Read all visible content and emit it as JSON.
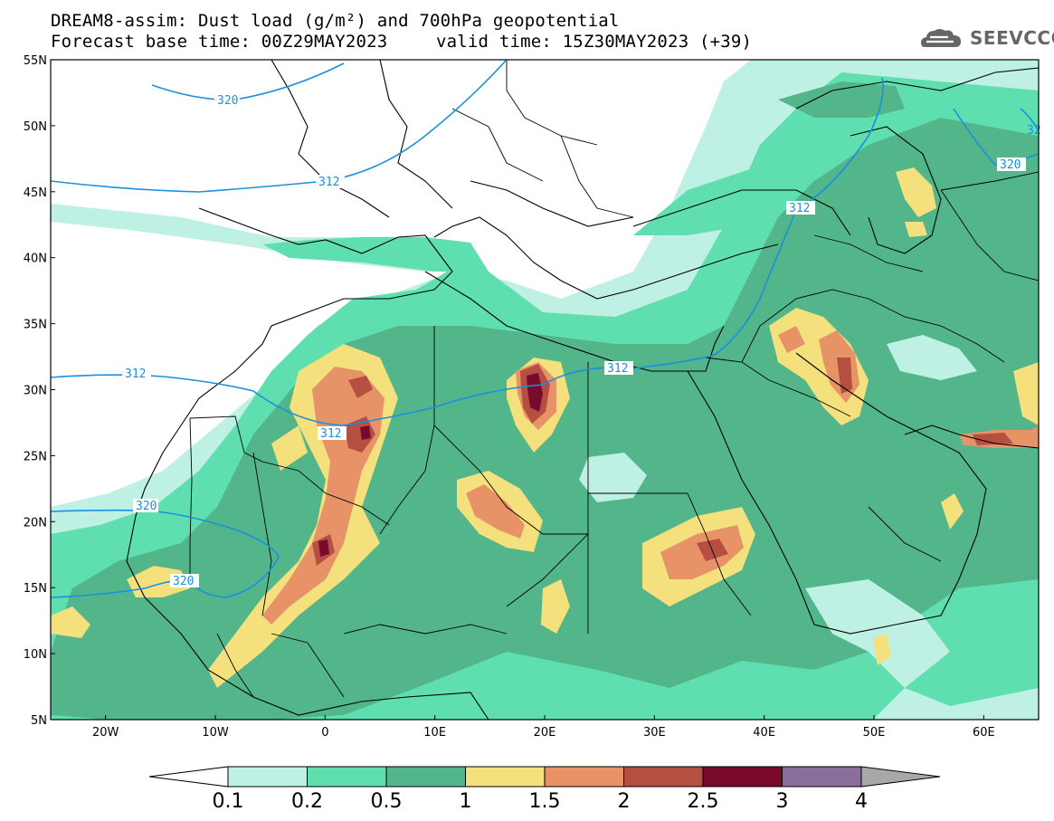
{
  "header": {
    "title_line1": "DREAM8-assim: Dust load (g/m²) and 700hPa geopotential",
    "title_line2": "Forecast base time: 00Z29MAY2023",
    "valid_time": "valid time: 15Z30MAY2023 (+39)",
    "logo_text": "SEEVCCC",
    "logo_icon": "cloud-icon"
  },
  "map": {
    "lon_range": [
      -25,
      65
    ],
    "lat_range": [
      5,
      55
    ],
    "lat_ticks": [
      "55N",
      "50N",
      "45N",
      "40N",
      "35N",
      "30N",
      "25N",
      "20N",
      "15N",
      "10N",
      "5N"
    ],
    "lon_ticks": [
      "20W",
      "10W",
      "0",
      "10E",
      "20E",
      "30E",
      "40E",
      "50E",
      "60E"
    ],
    "contour_labels": [
      "320",
      "312",
      "312",
      "312",
      "320",
      "312",
      "312",
      "320",
      "320",
      "32"
    ]
  },
  "colorbar": {
    "labels": [
      "0.1",
      "0.2",
      "0.5",
      "1",
      "1.5",
      "2",
      "2.5",
      "3",
      "4"
    ],
    "colors": [
      "#ffffff",
      "#bff0e4",
      "#5fdfb0",
      "#52b68a",
      "#f4e07c",
      "#e89268",
      "#b44f42",
      "#7a0a2c",
      "#8a6e9c",
      "#a8a8a8"
    ]
  }
}
